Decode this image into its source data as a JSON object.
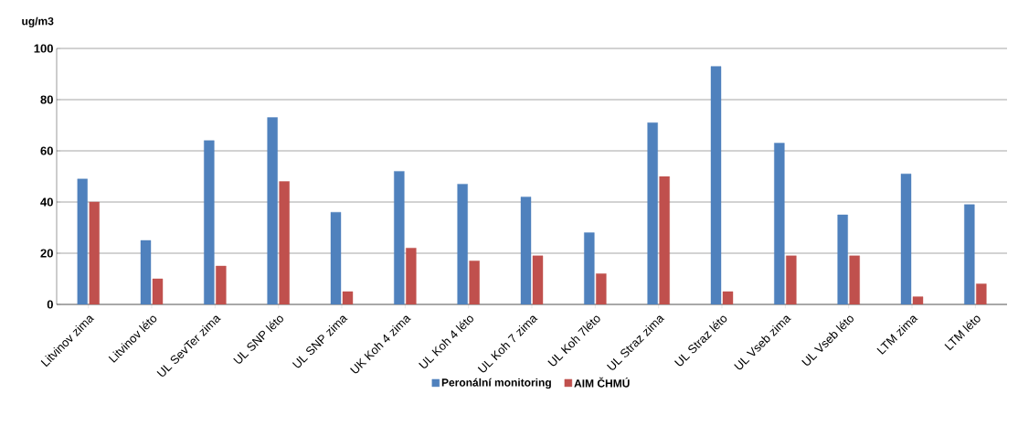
{
  "chart_data": {
    "type": "bar",
    "ylabel": "ug/m3",
    "categories": [
      "Litvinov zima",
      "Litvinov léto",
      "UL SevTer zima",
      "UL SNP léto",
      "UL SNP zima",
      "UK Koh 4 zima",
      "UL Koh 4 léto",
      "UL Koh 7 zima",
      "UL Koh 7léto",
      "UL Straz zima",
      "UL Straz léto",
      "UL Vseb zima",
      "UL Vseb léto",
      "LTM zima",
      "LTM léto"
    ],
    "series": [
      {
        "name": "Peronální monitoring",
        "color": "#4f81bd",
        "values": [
          49,
          25,
          64,
          73,
          36,
          52,
          47,
          42,
          28,
          71,
          93,
          63,
          35,
          51,
          39
        ]
      },
      {
        "name": "AIM ČHMÚ",
        "color": "#c0504d",
        "values": [
          40,
          10,
          15,
          48,
          5,
          22,
          17,
          19,
          12,
          50,
          5,
          19,
          19,
          3,
          8
        ]
      }
    ],
    "ylim": [
      0,
      100
    ],
    "yticks": [
      0,
      20,
      40,
      60,
      80,
      100
    ],
    "grid": "y",
    "legend": "bottom"
  }
}
